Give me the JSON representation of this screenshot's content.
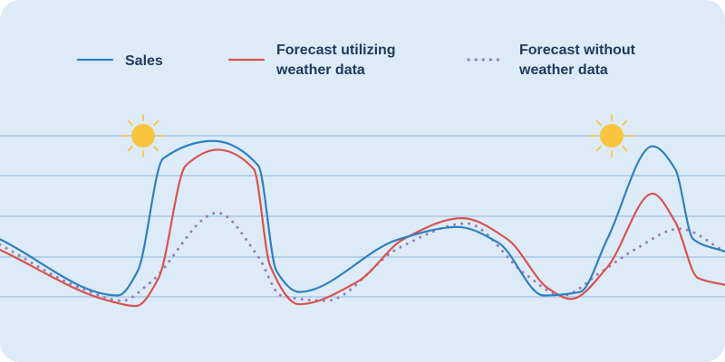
{
  "chart_data": {
    "type": "line",
    "title": "",
    "xlabel": "",
    "ylabel": "",
    "grid": true,
    "legend": "top",
    "series": [
      {
        "name": "Sales",
        "color": "#2f80bf",
        "style": "solid",
        "points": [
          [
            0,
            40
          ],
          [
            130,
            8
          ],
          [
            152,
            22
          ],
          [
            180,
            86
          ],
          [
            235,
            96
          ],
          [
            285,
            82
          ],
          [
            305,
            22
          ],
          [
            330,
            10
          ],
          [
            440,
            40
          ],
          [
            505,
            47
          ],
          [
            550,
            38
          ],
          [
            600,
            8
          ],
          [
            640,
            10
          ],
          [
            670,
            40
          ],
          [
            720,
            93
          ],
          [
            745,
            80
          ],
          [
            765,
            40
          ],
          [
            800,
            33
          ]
        ]
      },
      {
        "name": "Forecast utilizing\nweather data",
        "color": "#d9534f",
        "style": "solid",
        "points": [
          [
            0,
            34
          ],
          [
            120,
            5
          ],
          [
            150,
            2
          ],
          [
            175,
            18
          ],
          [
            205,
            82
          ],
          [
            240,
            91
          ],
          [
            280,
            80
          ],
          [
            298,
            25
          ],
          [
            330,
            3
          ],
          [
            395,
            16
          ],
          [
            445,
            40
          ],
          [
            510,
            52
          ],
          [
            560,
            40
          ],
          [
            605,
            12
          ],
          [
            630,
            6
          ],
          [
            670,
            24
          ],
          [
            720,
            66
          ],
          [
            745,
            50
          ],
          [
            770,
            18
          ],
          [
            800,
            14
          ]
        ]
      },
      {
        "name": "Forecast without\nweather data",
        "color": "#9b7fb5",
        "style": "dotted",
        "points": [
          [
            0,
            37
          ],
          [
            90,
            12
          ],
          [
            135,
            5
          ],
          [
            165,
            15
          ],
          [
            240,
            55
          ],
          [
            285,
            30
          ],
          [
            310,
            8
          ],
          [
            360,
            5
          ],
          [
            440,
            35
          ],
          [
            515,
            49
          ],
          [
            580,
            20
          ],
          [
            620,
            8
          ],
          [
            665,
            22
          ],
          [
            700,
            34
          ],
          [
            750,
            46
          ],
          [
            800,
            33
          ]
        ]
      }
    ],
    "annotations": [
      {
        "icon": "sun-icon",
        "x": 158
      },
      {
        "icon": "sun-icon",
        "x": 675
      }
    ],
    "colors": {
      "background": "#ddebf8",
      "gridline": "#a8c8e6",
      "legend_text": "#1e3a5c",
      "sun": "#f9c43e"
    }
  }
}
